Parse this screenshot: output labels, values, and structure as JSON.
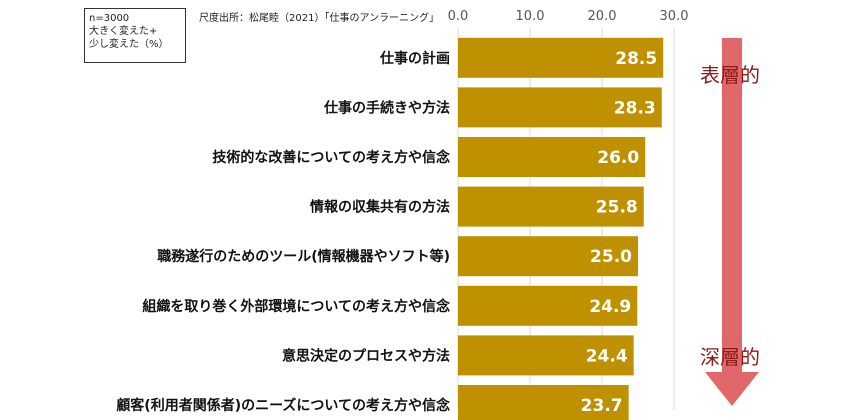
{
  "legend": {
    "line1": "n=3000",
    "line2": "大きく変えた+",
    "line3": "少し変えた（%）"
  },
  "source": "尺度出所：松尾睦（2021）「仕事のアンラーニング」",
  "arrow": {
    "top_label": "表層的",
    "bottom_label": "深層的",
    "color": "#e0686b",
    "label_color": "#8b1a1a"
  },
  "chart_data": {
    "type": "bar",
    "orientation": "horizontal",
    "categories": [
      "仕事の計画",
      "仕事の手続きや方法",
      "技術的な改善についての考え方や信念",
      "情報の収集共有の方法",
      "職務遂行のためのツール(情報機器やソフト等)",
      "組織を取り巻く外部環境についての考え方や信念",
      "意思決定のプロセスや方法",
      "顧客(利用者関係者)のニーズについての考え方や信念"
    ],
    "values": [
      28.5,
      28.3,
      26.0,
      25.8,
      25.0,
      24.9,
      24.4,
      23.7
    ],
    "value_labels": [
      "28.5",
      "28.3",
      "26.0",
      "25.8",
      "25.0",
      "24.9",
      "24.4",
      "23.7"
    ],
    "xlim": [
      0,
      30
    ],
    "ticks": [
      0,
      10,
      20,
      30
    ],
    "tick_labels": [
      "0.0",
      "10.0",
      "20.0",
      "30.0"
    ],
    "bar_color": "#bf9000",
    "grid": true
  }
}
